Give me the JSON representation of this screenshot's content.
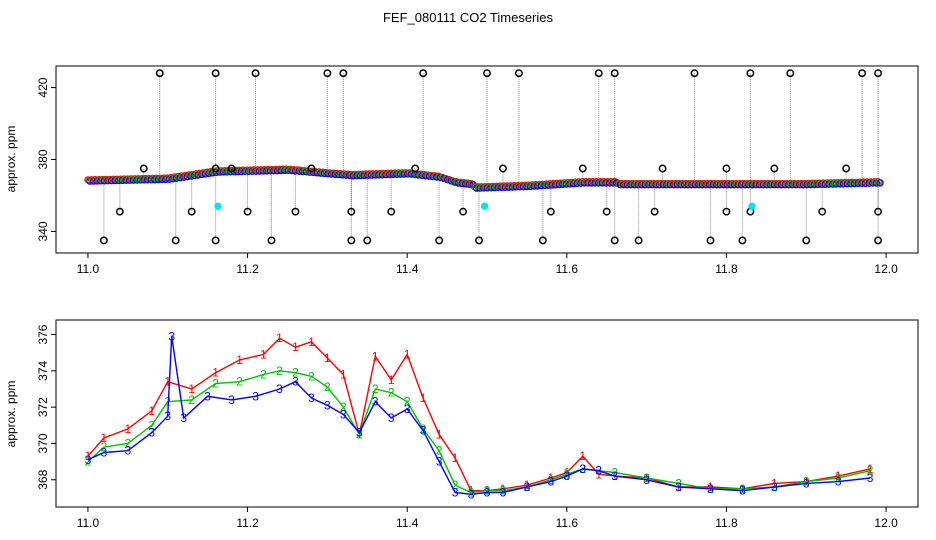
{
  "figure": {
    "title": "FEF_080111  CO2 Timeseries"
  },
  "colors": {
    "series1": "#ff0000",
    "series2": "#00c000",
    "series3": "#0000ff",
    "outlier": "#000000",
    "flagged": "#00e5ee",
    "stick": "#888888"
  },
  "chart_data": [
    {
      "type": "scatter",
      "panel": "top",
      "title": "",
      "xlabel": "",
      "ylabel": "approx. ppm",
      "xlim": [
        10.96,
        12.04
      ],
      "ylim": [
        328,
        432
      ],
      "x_ticks": [
        "11.0",
        "11.2",
        "11.4",
        "11.6",
        "11.8",
        "12.0"
      ],
      "y_ticks": [
        "340",
        "380",
        "420"
      ],
      "grid": false,
      "legend": "none",
      "baseline_segments": [
        {
          "x": [
            11.0,
            11.1,
            11.16,
            11.25,
            11.3,
            11.33
          ],
          "y": [
            368,
            369,
            373,
            374,
            372,
            371
          ]
        },
        {
          "x": [
            11.33,
            11.4,
            11.44,
            11.46,
            11.48
          ],
          "y": [
            371,
            372,
            370,
            367,
            366
          ]
        },
        {
          "x": [
            11.48,
            11.55,
            11.62,
            11.66
          ],
          "y": [
            364,
            365,
            367,
            367
          ]
        },
        {
          "x": [
            11.66,
            11.75,
            11.83
          ],
          "y": [
            366,
            366,
            366
          ]
        },
        {
          "x": [
            11.83,
            11.9,
            11.99
          ],
          "y": [
            366,
            366,
            367
          ]
        }
      ],
      "outliers": {
        "x": [
          11.09,
          11.16,
          11.21,
          11.3,
          11.32,
          11.42,
          11.5,
          11.54,
          11.64,
          11.66,
          11.76,
          11.83,
          11.88,
          11.97,
          11.99,
          11.07,
          11.16,
          11.18,
          11.28,
          11.41,
          11.52,
          11.62,
          11.72,
          11.8,
          11.86,
          11.95,
          11.04,
          11.13,
          11.2,
          11.26,
          11.33,
          11.38,
          11.47,
          11.58,
          11.65,
          11.71,
          11.8,
          11.83,
          11.92,
          11.99,
          11.02,
          11.11,
          11.16,
          11.23,
          11.33,
          11.35,
          11.44,
          11.49,
          11.57,
          11.66,
          11.69,
          11.78,
          11.82,
          11.9,
          11.99
        ],
        "y": [
          428,
          428,
          428,
          428,
          428,
          428,
          428,
          428,
          428,
          428,
          428,
          428,
          428,
          428,
          428,
          375,
          375,
          375,
          375,
          375,
          375,
          375,
          375,
          375,
          375,
          375,
          351,
          351,
          351,
          351,
          351,
          351,
          351,
          351,
          351,
          351,
          351,
          351,
          351,
          351,
          335,
          335,
          335,
          335,
          335,
          335,
          335,
          335,
          335,
          335,
          335,
          335,
          335,
          335,
          335
        ]
      },
      "flagged": {
        "x": [
          11.163,
          11.497,
          11.832
        ],
        "y": [
          354,
          354,
          354
        ]
      }
    },
    {
      "type": "line",
      "panel": "bottom",
      "title": "",
      "xlabel": "",
      "ylabel": "approx. ppm",
      "xlim": [
        10.96,
        12.04
      ],
      "ylim": [
        366.5,
        376.8
      ],
      "x_ticks": [
        "11.0",
        "11.2",
        "11.4",
        "11.6",
        "11.8",
        "12.0"
      ],
      "y_ticks": [
        "368",
        "370",
        "372",
        "374",
        "376"
      ],
      "grid": false,
      "legend": "none",
      "series": [
        {
          "label": "1",
          "x": [
            11.0,
            11.02,
            11.05,
            11.08,
            11.1,
            11.13,
            11.16,
            11.19,
            11.22,
            11.24,
            11.26,
            11.28,
            11.3,
            11.32,
            11.34,
            11.36,
            11.38,
            11.4,
            11.42,
            11.44,
            11.46,
            11.48,
            11.5,
            11.52,
            11.55,
            11.58,
            11.6,
            11.62,
            11.64,
            11.66,
            11.7,
            11.74,
            11.78,
            11.82,
            11.86,
            11.9,
            11.94,
            11.98
          ],
          "y": [
            369.3,
            370.3,
            370.8,
            371.8,
            373.4,
            373.0,
            373.9,
            374.6,
            374.9,
            375.8,
            375.3,
            375.6,
            374.7,
            373.8,
            370.5,
            374.8,
            373.5,
            374.9,
            372.5,
            370.5,
            369.2,
            367.4,
            367.4,
            367.5,
            367.7,
            368.1,
            368.4,
            369.3,
            368.3,
            368.2,
            368.1,
            367.6,
            367.6,
            367.5,
            367.8,
            367.9,
            368.2,
            368.6
          ]
        },
        {
          "label": "2",
          "x": [
            11.0,
            11.02,
            11.05,
            11.08,
            11.1,
            11.13,
            11.16,
            11.19,
            11.22,
            11.24,
            11.26,
            11.28,
            11.3,
            11.32,
            11.34,
            11.36,
            11.38,
            11.4,
            11.42,
            11.44,
            11.46,
            11.48,
            11.5,
            11.52,
            11.55,
            11.58,
            11.6,
            11.62,
            11.64,
            11.66,
            11.7,
            11.74,
            11.78,
            11.82,
            11.86,
            11.9,
            11.94,
            11.98
          ],
          "y": [
            369.0,
            369.8,
            370.0,
            371.0,
            372.3,
            372.4,
            373.3,
            373.4,
            373.8,
            374.0,
            373.9,
            373.7,
            373.1,
            372.0,
            370.5,
            373.0,
            372.8,
            372.3,
            370.8,
            369.6,
            367.7,
            367.3,
            367.4,
            367.4,
            367.6,
            368.0,
            368.3,
            368.6,
            368.5,
            368.4,
            368.1,
            367.8,
            367.5,
            367.5,
            367.6,
            367.9,
            368.1,
            368.5
          ]
        },
        {
          "label": "3",
          "x": [
            11.0,
            11.02,
            11.05,
            11.08,
            11.1,
            11.105,
            11.12,
            11.15,
            11.18,
            11.21,
            11.24,
            11.26,
            11.28,
            11.3,
            11.32,
            11.34,
            11.36,
            11.38,
            11.4,
            11.42,
            11.44,
            11.46,
            11.48,
            11.5,
            11.52,
            11.55,
            11.58,
            11.6,
            11.62,
            11.64,
            11.66,
            11.7,
            11.74,
            11.78,
            11.82,
            11.86,
            11.9,
            11.94,
            11.98
          ],
          "y": [
            369.1,
            369.5,
            369.6,
            370.6,
            371.5,
            375.9,
            371.4,
            372.6,
            372.4,
            372.6,
            373.0,
            373.4,
            372.5,
            372.1,
            371.6,
            370.6,
            372.3,
            371.4,
            371.9,
            370.7,
            369.0,
            367.3,
            367.2,
            367.3,
            367.3,
            367.6,
            367.9,
            368.2,
            368.6,
            368.5,
            368.2,
            368.0,
            367.6,
            367.5,
            367.4,
            367.6,
            367.8,
            367.9,
            368.1
          ]
        }
      ]
    }
  ]
}
